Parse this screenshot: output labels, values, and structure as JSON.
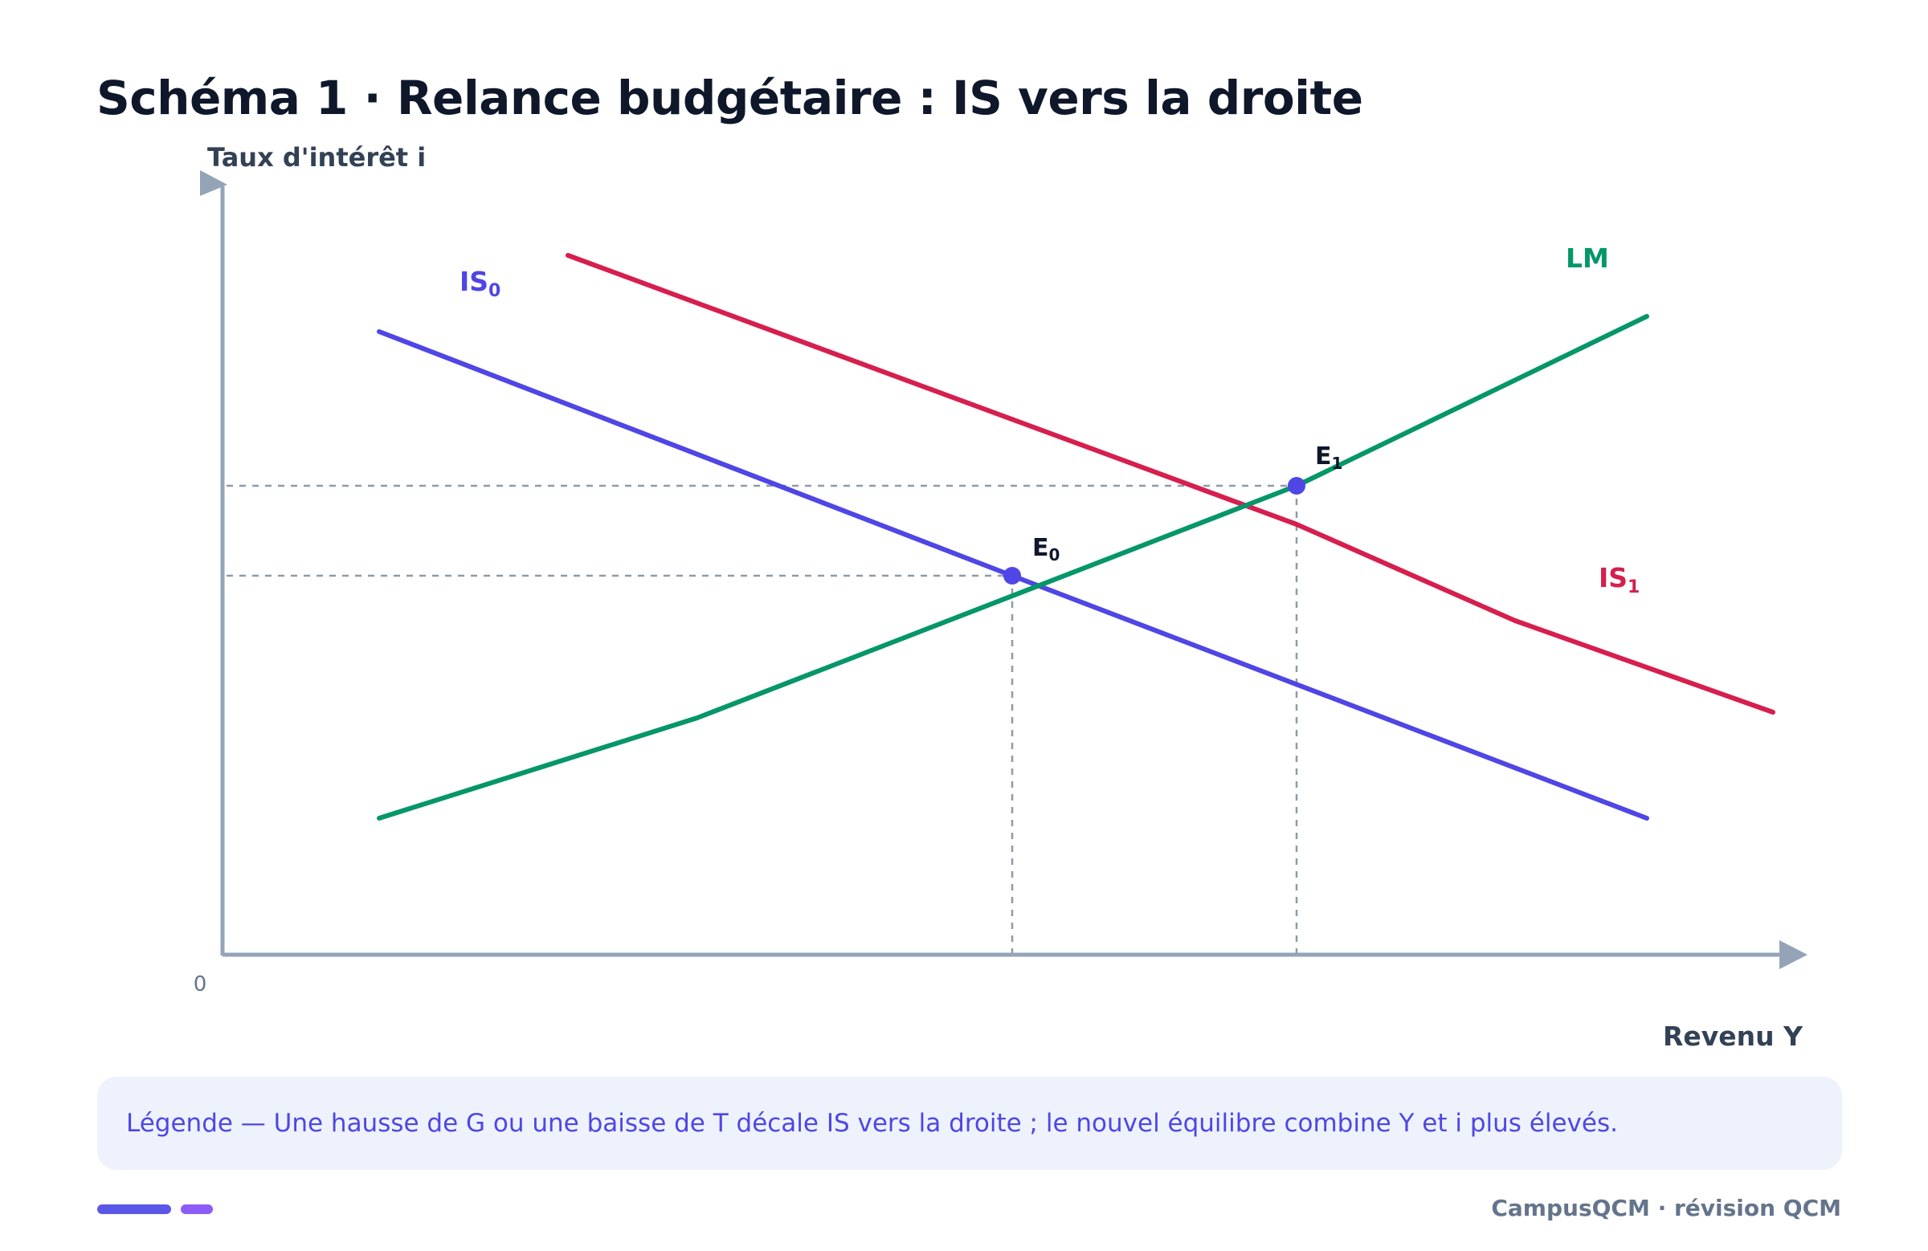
{
  "title": "Schéma 1 · Relance budgétaire : IS vers la droite",
  "axes": {
    "y_label": "Taux d'intérêt i",
    "x_label": "Revenu Y",
    "origin_label": "0"
  },
  "curves": {
    "is0": {
      "name": "IS",
      "subscript": "0",
      "color": "#4f46e5"
    },
    "is1": {
      "name": "IS",
      "subscript": "1",
      "color": "#d61f4e"
    },
    "lm": {
      "name": "LM",
      "color": "#059669"
    }
  },
  "points": {
    "e0": {
      "name": "E",
      "subscript": "0"
    },
    "e1": {
      "name": "E",
      "subscript": "1"
    }
  },
  "colors": {
    "axis": "#94a3b8",
    "guide": "#8e9aab",
    "point": "#4f46e5",
    "text_dark": "#0f172a"
  },
  "legend": {
    "text": "Légende — Une hausse de G ou une baisse de T décale IS vers la droite ; le nouvel équilibre combine Y et i plus élevés."
  },
  "footer": {
    "text": "CampusQCM · révision QCM"
  }
}
